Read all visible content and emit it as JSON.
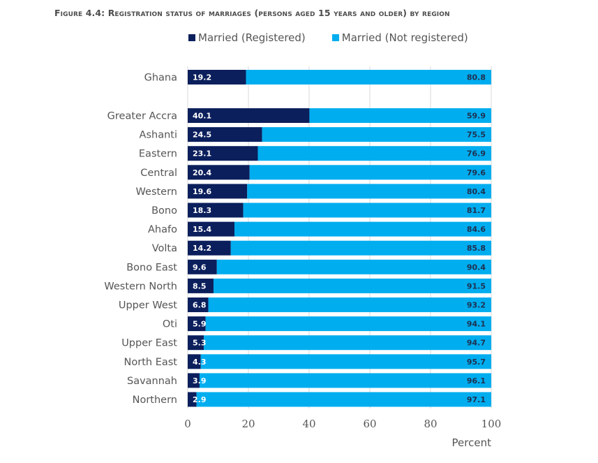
{
  "chart_data": {
    "type": "bar",
    "orientation": "horizontal",
    "stacked": true,
    "title": "Figure 4.4: Registration status of marriages (persons aged 15 years and older) by region",
    "xlabel": "Percent",
    "ylabel": "",
    "xlim": [
      0,
      100
    ],
    "xticks": [
      "0",
      "20",
      "40",
      "60",
      "80",
      "100"
    ],
    "grid": true,
    "legend_position": "top",
    "categories": [
      "Ghana",
      "Greater Accra",
      "Ashanti",
      "Eastern",
      "Central",
      "Western",
      "Bono",
      "Ahafo",
      "Volta",
      "Bono East",
      "Western North",
      "Upper West",
      "Oti",
      "Upper East",
      "North East",
      "Savannah",
      "Northern"
    ],
    "series": [
      {
        "name": "Married (Registered)",
        "color": "#0b1f5c",
        "values": [
          19.2,
          40.1,
          24.5,
          23.1,
          20.4,
          19.6,
          18.3,
          15.4,
          14.2,
          9.6,
          8.5,
          6.8,
          5.9,
          5.3,
          4.3,
          3.9,
          2.9
        ],
        "labels": [
          "19.2",
          "40.1",
          "24.5",
          "23.1",
          "20.4",
          "19.6",
          "18.3",
          "15.4",
          "14.2",
          "9.6",
          "8.5",
          "6.8",
          "5.9",
          "5.3",
          "4.3",
          "3.9",
          "2.9"
        ]
      },
      {
        "name": "Married (Not registered)",
        "color": "#00adef",
        "values": [
          80.8,
          59.9,
          75.5,
          76.9,
          79.6,
          80.4,
          81.7,
          84.6,
          85.8,
          90.4,
          91.5,
          93.2,
          94.1,
          94.7,
          95.7,
          96.1,
          97.1
        ],
        "labels": [
          "80.8",
          "59.9",
          "75.5",
          "76.9",
          "79.6",
          "80.4",
          "81.7",
          "84.6",
          "85.8",
          "90.4",
          "91.5",
          "93.2",
          "94.1",
          "94.7",
          "95.7",
          "96.1",
          "97.1"
        ]
      }
    ]
  }
}
